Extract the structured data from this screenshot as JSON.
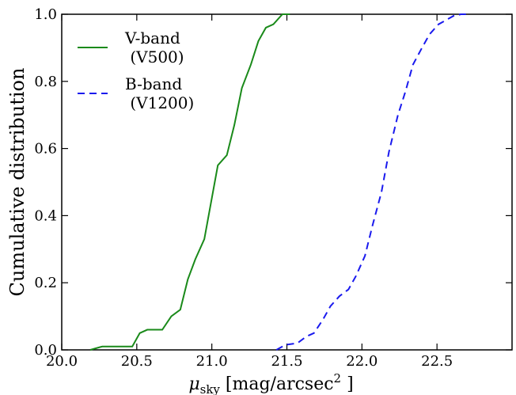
{
  "chart_data": {
    "type": "line",
    "xlabel": "μ_{sky} [mag/arcsec^{2} ]",
    "ylabel": "Cumulative distribution",
    "xlim": [
      20.0,
      23.0
    ],
    "xticks": [
      {
        "value": 20.0,
        "label": "20.0"
      },
      20.5,
      {
        "value": 21.0,
        "label": "21.0"
      },
      21.5,
      {
        "value": 22.0,
        "label": "22.0"
      },
      22.5
    ],
    "ylim": [
      0,
      1
    ],
    "yticks": [
      {
        "value": 0,
        "label": "0.0"
      },
      0.2,
      0.4,
      0.6,
      0.8,
      {
        "value": 1,
        "label": "1.0"
      }
    ],
    "legend": "upper left",
    "series": [
      {
        "name": "V-band\n (V500)",
        "color": "#1a8a1a",
        "dash": "solid",
        "x": [
          20.19,
          20.27,
          20.38,
          20.47,
          20.52,
          20.57,
          20.67,
          20.73,
          20.79,
          20.84,
          20.89,
          20.95,
          21.04,
          21.1,
          21.15,
          21.2,
          21.26,
          21.31,
          21.36,
          21.41,
          21.47,
          21.52
        ],
        "values": [
          0,
          0.01,
          0.01,
          0.01,
          0.05,
          0.06,
          0.06,
          0.1,
          0.12,
          0.21,
          0.27,
          0.33,
          0.55,
          0.58,
          0.67,
          0.78,
          0.85,
          0.92,
          0.96,
          0.97,
          1.0,
          1.0
        ]
      },
      {
        "name": "B-band\n (V1200)",
        "color": "#1a1aee",
        "dash": "dashed",
        "x": [
          21.43,
          21.49,
          21.57,
          21.63,
          21.68,
          21.74,
          21.79,
          21.85,
          21.91,
          21.96,
          22.02,
          22.07,
          22.13,
          22.18,
          22.24,
          22.29,
          22.34,
          22.4,
          22.45,
          22.51,
          22.55,
          22.61,
          22.66,
          22.71
        ],
        "values": [
          0,
          0.015,
          0.02,
          0.04,
          0.05,
          0.09,
          0.13,
          0.16,
          0.18,
          0.22,
          0.28,
          0.37,
          0.47,
          0.59,
          0.7,
          0.77,
          0.85,
          0.9,
          0.94,
          0.97,
          0.98,
          0.995,
          1.0,
          1.0
        ]
      }
    ]
  }
}
